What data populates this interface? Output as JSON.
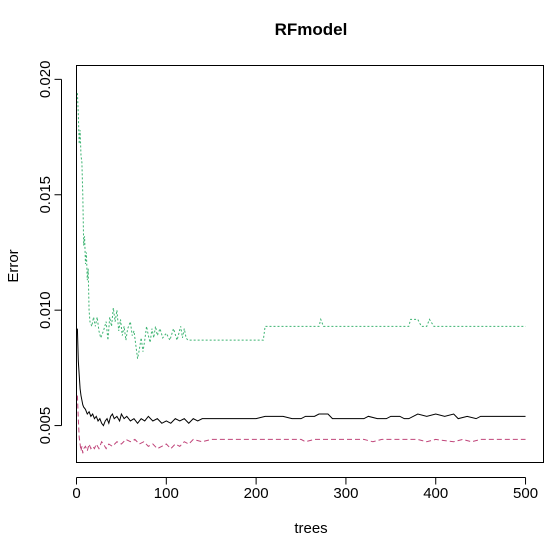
{
  "chart_data": {
    "type": "line",
    "title": "RFmodel",
    "xlabel": "trees",
    "ylabel": "Error",
    "xlim": [
      0,
      520
    ],
    "ylim": [
      0.0034,
      0.0206
    ],
    "xticks": [
      0,
      100,
      200,
      300,
      400,
      500
    ],
    "yticks": [
      0.005,
      0.01,
      0.015,
      0.02
    ],
    "ytick_labels": [
      "0.005",
      "0.010",
      "0.015",
      "0.020"
    ],
    "grid": false,
    "legend": "none",
    "series": [
      {
        "color": "#000000",
        "dash": "solid",
        "points": [
          [
            1,
            0.0092
          ],
          [
            2,
            0.0078
          ],
          [
            3,
            0.0072
          ],
          [
            4,
            0.0066
          ],
          [
            5,
            0.0063
          ],
          [
            6,
            0.0061
          ],
          [
            7,
            0.0059
          ],
          [
            8,
            0.0058
          ],
          [
            10,
            0.0057
          ],
          [
            12,
            0.0055
          ],
          [
            14,
            0.0056
          ],
          [
            16,
            0.0054
          ],
          [
            18,
            0.0055
          ],
          [
            20,
            0.0053
          ],
          [
            22,
            0.0054
          ],
          [
            24,
            0.0052
          ],
          [
            26,
            0.0053
          ],
          [
            28,
            0.0051
          ],
          [
            30,
            0.005
          ],
          [
            32,
            0.0052
          ],
          [
            34,
            0.0053
          ],
          [
            36,
            0.0051
          ],
          [
            38,
            0.0054
          ],
          [
            40,
            0.0055
          ],
          [
            42,
            0.0053
          ],
          [
            45,
            0.0054
          ],
          [
            48,
            0.0052
          ],
          [
            50,
            0.0055
          ],
          [
            53,
            0.0053
          ],
          [
            56,
            0.0054
          ],
          [
            60,
            0.0052
          ],
          [
            64,
            0.0053
          ],
          [
            68,
            0.0051
          ],
          [
            72,
            0.0053
          ],
          [
            76,
            0.0052
          ],
          [
            80,
            0.0054
          ],
          [
            85,
            0.0052
          ],
          [
            90,
            0.0053
          ],
          [
            95,
            0.0051
          ],
          [
            100,
            0.0052
          ],
          [
            105,
            0.0051
          ],
          [
            110,
            0.0053
          ],
          [
            115,
            0.0052
          ],
          [
            120,
            0.0053
          ],
          [
            125,
            0.0051
          ],
          [
            130,
            0.0053
          ],
          [
            135,
            0.0052
          ],
          [
            140,
            0.0053
          ],
          [
            150,
            0.0053
          ],
          [
            160,
            0.0053
          ],
          [
            170,
            0.0053
          ],
          [
            180,
            0.0053
          ],
          [
            190,
            0.0053
          ],
          [
            200,
            0.0053
          ],
          [
            210,
            0.0054
          ],
          [
            230,
            0.0054
          ],
          [
            240,
            0.0053
          ],
          [
            250,
            0.0053
          ],
          [
            255,
            0.0054
          ],
          [
            265,
            0.0054
          ],
          [
            270,
            0.0055
          ],
          [
            280,
            0.0055
          ],
          [
            285,
            0.0053
          ],
          [
            310,
            0.0053
          ],
          [
            320,
            0.0053
          ],
          [
            325,
            0.0054
          ],
          [
            335,
            0.0053
          ],
          [
            345,
            0.0053
          ],
          [
            350,
            0.0054
          ],
          [
            360,
            0.0054
          ],
          [
            365,
            0.0053
          ],
          [
            370,
            0.0053
          ],
          [
            380,
            0.0055
          ],
          [
            390,
            0.0054
          ],
          [
            400,
            0.0055
          ],
          [
            410,
            0.0054
          ],
          [
            420,
            0.0055
          ],
          [
            425,
            0.0053
          ],
          [
            435,
            0.0054
          ],
          [
            445,
            0.0053
          ],
          [
            450,
            0.0054
          ],
          [
            470,
            0.0054
          ],
          [
            500,
            0.0054
          ]
        ]
      },
      {
        "color": "#c0457a",
        "dash": "5,3",
        "points": [
          [
            1,
            0.0063
          ],
          [
            2,
            0.0053
          ],
          [
            3,
            0.0045
          ],
          [
            4,
            0.0042
          ],
          [
            5,
            0.0039
          ],
          [
            6,
            0.0041
          ],
          [
            7,
            0.0038
          ],
          [
            8,
            0.004
          ],
          [
            10,
            0.0041
          ],
          [
            12,
            0.0039
          ],
          [
            14,
            0.0042
          ],
          [
            16,
            0.004
          ],
          [
            18,
            0.0041
          ],
          [
            20,
            0.004
          ],
          [
            22,
            0.0042
          ],
          [
            25,
            0.004
          ],
          [
            28,
            0.0043
          ],
          [
            30,
            0.0042
          ],
          [
            33,
            0.004
          ],
          [
            36,
            0.0042
          ],
          [
            40,
            0.0041
          ],
          [
            45,
            0.0043
          ],
          [
            50,
            0.0042
          ],
          [
            55,
            0.0044
          ],
          [
            60,
            0.0043
          ],
          [
            65,
            0.0044
          ],
          [
            70,
            0.0042
          ],
          [
            75,
            0.0043
          ],
          [
            80,
            0.0041
          ],
          [
            85,
            0.0042
          ],
          [
            90,
            0.004
          ],
          [
            95,
            0.0041
          ],
          [
            100,
            0.0042
          ],
          [
            105,
            0.004
          ],
          [
            110,
            0.0042
          ],
          [
            115,
            0.0041
          ],
          [
            120,
            0.0043
          ],
          [
            125,
            0.0042
          ],
          [
            130,
            0.0044
          ],
          [
            140,
            0.0043
          ],
          [
            150,
            0.0044
          ],
          [
            200,
            0.0044
          ],
          [
            250,
            0.0044
          ],
          [
            255,
            0.0043
          ],
          [
            265,
            0.0044
          ],
          [
            300,
            0.0044
          ],
          [
            320,
            0.0044
          ],
          [
            330,
            0.0043
          ],
          [
            340,
            0.0044
          ],
          [
            380,
            0.0044
          ],
          [
            390,
            0.0043
          ],
          [
            400,
            0.0044
          ],
          [
            420,
            0.0043
          ],
          [
            430,
            0.0044
          ],
          [
            440,
            0.0043
          ],
          [
            450,
            0.0044
          ],
          [
            500,
            0.0044
          ]
        ]
      },
      {
        "color": "#3cb371",
        "dash": "2,2",
        "points": [
          [
            1,
            0.0194
          ],
          [
            2,
            0.0185
          ],
          [
            3,
            0.0172
          ],
          [
            4,
            0.0178
          ],
          [
            5,
            0.0167
          ],
          [
            6,
            0.0164
          ],
          [
            7,
            0.015
          ],
          [
            8,
            0.0128
          ],
          [
            9,
            0.0132
          ],
          [
            10,
            0.012
          ],
          [
            11,
            0.0125
          ],
          [
            12,
            0.0113
          ],
          [
            13,
            0.0118
          ],
          [
            14,
            0.01
          ],
          [
            15,
            0.0095
          ],
          [
            17,
            0.0093
          ],
          [
            19,
            0.0097
          ],
          [
            21,
            0.0093
          ],
          [
            23,
            0.0097
          ],
          [
            25,
            0.0091
          ],
          [
            27,
            0.0088
          ],
          [
            30,
            0.0091
          ],
          [
            33,
            0.0095
          ],
          [
            35,
            0.0087
          ],
          [
            37,
            0.0097
          ],
          [
            39,
            0.0093
          ],
          [
            41,
            0.0101
          ],
          [
            43,
            0.0095
          ],
          [
            45,
            0.01
          ],
          [
            47,
            0.0091
          ],
          [
            49,
            0.0096
          ],
          [
            51,
            0.0089
          ],
          [
            53,
            0.0093
          ],
          [
            55,
            0.0087
          ],
          [
            57,
            0.0092
          ],
          [
            60,
            0.0095
          ],
          [
            62,
            0.0089
          ],
          [
            64,
            0.0091
          ],
          [
            66,
            0.0085
          ],
          [
            68,
            0.0079
          ],
          [
            70,
            0.0083
          ],
          [
            72,
            0.0088
          ],
          [
            74,
            0.0082
          ],
          [
            76,
            0.0087
          ],
          [
            78,
            0.0093
          ],
          [
            80,
            0.0089
          ],
          [
            82,
            0.0086
          ],
          [
            84,
            0.0092
          ],
          [
            86,
            0.0088
          ],
          [
            88,
            0.0093
          ],
          [
            90,
            0.0089
          ],
          [
            93,
            0.0092
          ],
          [
            96,
            0.0088
          ],
          [
            100,
            0.009
          ],
          [
            104,
            0.0087
          ],
          [
            108,
            0.0092
          ],
          [
            112,
            0.0087
          ],
          [
            116,
            0.0093
          ],
          [
            118,
            0.0088
          ],
          [
            120,
            0.0092
          ],
          [
            122,
            0.0088
          ],
          [
            124,
            0.0087
          ],
          [
            200,
            0.0087
          ],
          [
            208,
            0.0087
          ],
          [
            210,
            0.0093
          ],
          [
            270,
            0.0093
          ],
          [
            272,
            0.0096
          ],
          [
            275,
            0.0093
          ],
          [
            370,
            0.0093
          ],
          [
            372,
            0.0096
          ],
          [
            380,
            0.0096
          ],
          [
            384,
            0.0093
          ],
          [
            390,
            0.0093
          ],
          [
            393,
            0.0096
          ],
          [
            398,
            0.0093
          ],
          [
            500,
            0.0093
          ]
        ]
      }
    ]
  }
}
